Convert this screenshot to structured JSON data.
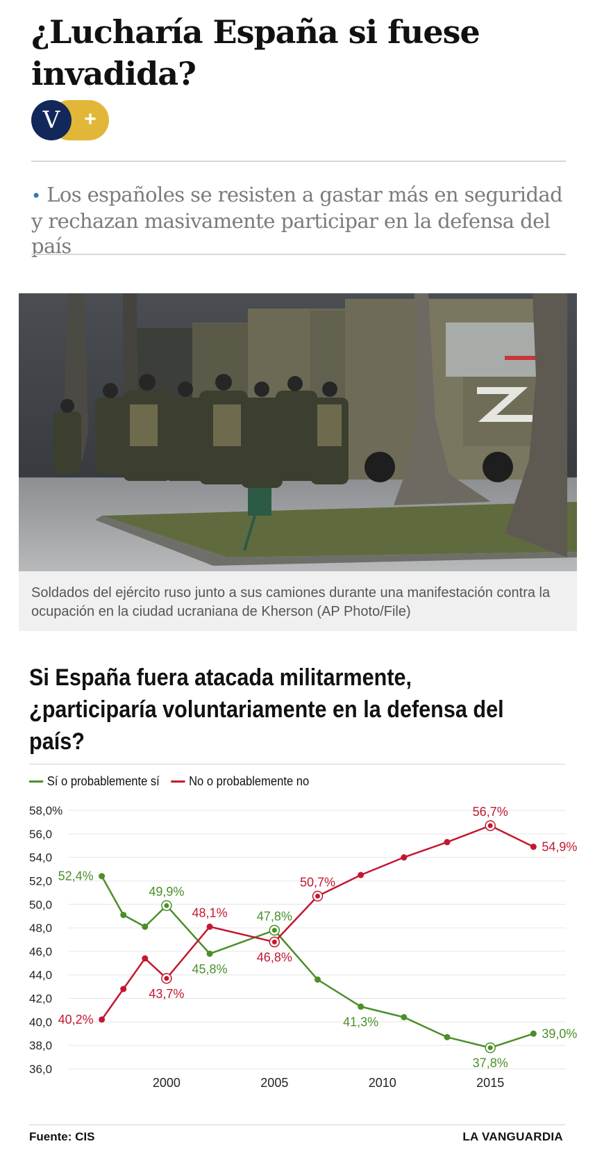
{
  "article": {
    "headline": "¿Lucharía España si fuese invadida?",
    "badge": {
      "letter": "V",
      "plus": "+"
    },
    "subtitle_bullet": "•",
    "subtitle": "Los españoles se resisten a gastar más en seguridad y rechazan masivamente participar en la defensa del país",
    "photo_caption": "Soldados del ejército ruso junto a sus camiones durante una manifestación contra la ocupación en la ciudad ucraniana de Kherson  (AP Photo/File)"
  },
  "colors": {
    "green": "#4a8f29",
    "red": "#c2182f",
    "badge_blue": "#13285a",
    "badge_gold": "#e2b737",
    "grid": "#e6e6e6"
  },
  "chart_data": {
    "type": "line",
    "title": "Si España fuera atacada militarmente, ¿participaría voluntariamente en la defensa del país?",
    "ylim": [
      36,
      58
    ],
    "y_ticks": [
      "58,0%",
      "56,0",
      "54,0",
      "52,0",
      "50,0",
      "48,0",
      "46,0",
      "44,0",
      "42,0",
      "40,0",
      "38,0",
      "36,0"
    ],
    "y_tick_values": [
      58,
      56,
      54,
      52,
      50,
      48,
      46,
      44,
      42,
      40,
      38,
      36
    ],
    "x_ticks": [
      "2000",
      "2005",
      "2010",
      "2015"
    ],
    "x_tick_values": [
      2000,
      2005,
      2010,
      2015
    ],
    "xlim": [
      1995.5,
      2018.5
    ],
    "grid": true,
    "legend_position": "top-left",
    "series": [
      {
        "name": "Sí o probablemente sí",
        "color": "#4a8f29",
        "points": [
          {
            "x": 1997,
            "y": 52.4,
            "label": "52,4%",
            "label_pos": "left"
          },
          {
            "x": 1998,
            "y": 49.1
          },
          {
            "x": 1999,
            "y": 48.1
          },
          {
            "x": 2000,
            "y": 49.9,
            "label": "49,9%",
            "label_pos": "above",
            "ring": true
          },
          {
            "x": 2002,
            "y": 45.8,
            "label": "45,8%",
            "label_pos": "below"
          },
          {
            "x": 2005,
            "y": 47.8,
            "label": "47,8%",
            "label_pos": "above",
            "ring": true
          },
          {
            "x": 2007,
            "y": 43.6
          },
          {
            "x": 2009,
            "y": 41.3,
            "label": "41,3%",
            "label_pos": "below"
          },
          {
            "x": 2011,
            "y": 40.4
          },
          {
            "x": 2013,
            "y": 38.7
          },
          {
            "x": 2015,
            "y": 37.8,
            "label": "37,8%",
            "label_pos": "below",
            "ring": true
          },
          {
            "x": 2017,
            "y": 39.0,
            "label": "39,0%",
            "label_pos": "right"
          }
        ]
      },
      {
        "name": "No o probablemente no",
        "color": "#c2182f",
        "points": [
          {
            "x": 1997,
            "y": 40.2,
            "label": "40,2%",
            "label_pos": "left"
          },
          {
            "x": 1998,
            "y": 42.8
          },
          {
            "x": 1999,
            "y": 45.4
          },
          {
            "x": 2000,
            "y": 43.7,
            "label": "43,7%",
            "label_pos": "below",
            "ring": true
          },
          {
            "x": 2002,
            "y": 48.1,
            "label": "48,1%",
            "label_pos": "above"
          },
          {
            "x": 2005,
            "y": 46.8,
            "label": "46,8%",
            "label_pos": "below",
            "ring": true
          },
          {
            "x": 2007,
            "y": 50.7,
            "label": "50,7%",
            "label_pos": "above",
            "ring": true
          },
          {
            "x": 2009,
            "y": 52.5
          },
          {
            "x": 2011,
            "y": 54.0
          },
          {
            "x": 2013,
            "y": 55.3
          },
          {
            "x": 2015,
            "y": 56.7,
            "label": "56,7%",
            "label_pos": "above",
            "ring": true
          },
          {
            "x": 2017,
            "y": 54.9,
            "label": "54,9%",
            "label_pos": "right"
          }
        ]
      }
    ],
    "source": "Fuente: CIS",
    "publisher": "LA VANGUARDIA"
  }
}
